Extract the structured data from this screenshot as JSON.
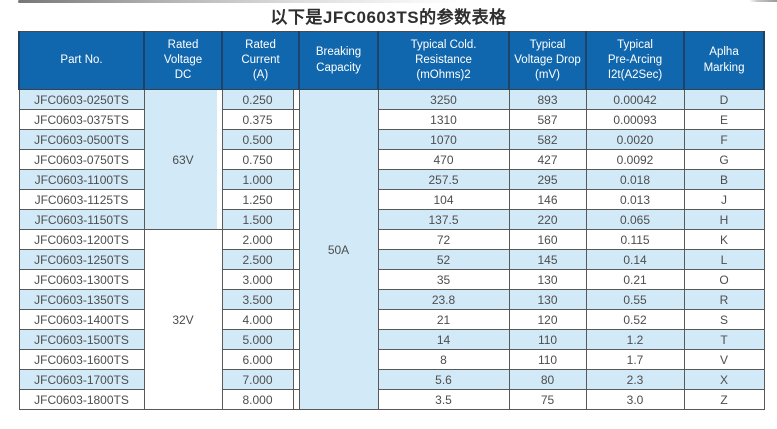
{
  "page": {
    "title": "以下是JFC0603TS的参数表格"
  },
  "table": {
    "headers": [
      "Part No.",
      "Rated\nVoltage\nDC",
      "Rated\nCurrent\n(A)",
      "Breaking\nCapacity",
      "Typical Cold.\nResistance\n(mOhms)2",
      "Typical\nVoltage Drop\n(mV)",
      "Typical\nPre-Arcing\nI2t(A2Sec)",
      "Aplha\nMarking"
    ],
    "voltage_groups": [
      {
        "label": "63V",
        "rows": 7
      },
      {
        "label": "32V",
        "rows": 9
      }
    ],
    "breaking_capacity": "50A",
    "rows": [
      {
        "part": "JFC0603-0250TS",
        "current": "0.250",
        "resistance": "3250",
        "drop": "893",
        "prearcing": "0.00042",
        "marking": "D"
      },
      {
        "part": "JFC0603-0375TS",
        "current": "0.375",
        "resistance": "1310",
        "drop": "587",
        "prearcing": "0.00093",
        "marking": "E"
      },
      {
        "part": "JFC0603-0500TS",
        "current": "0.500",
        "resistance": "1070",
        "drop": "582",
        "prearcing": "0.0020",
        "marking": "F"
      },
      {
        "part": "JFC0603-0750TS",
        "current": "0.750",
        "resistance": "470",
        "drop": "427",
        "prearcing": "0.0092",
        "marking": "G"
      },
      {
        "part": "JFC0603-1100TS",
        "current": "1.000",
        "resistance": "257.5",
        "drop": "295",
        "prearcing": "0.018",
        "marking": "B"
      },
      {
        "part": "JFC0603-1125TS",
        "current": "1.250",
        "resistance": "104",
        "drop": "146",
        "prearcing": "0.013",
        "marking": "J"
      },
      {
        "part": "JFC0603-1150TS",
        "current": "1.500",
        "resistance": "137.5",
        "drop": "220",
        "prearcing": "0.065",
        "marking": "H"
      },
      {
        "part": "JFC0603-1200TS",
        "current": "2.000",
        "resistance": "72",
        "drop": "160",
        "prearcing": "0.115",
        "marking": "K"
      },
      {
        "part": "JFC0603-1250TS",
        "current": "2.500",
        "resistance": "52",
        "drop": "145",
        "prearcing": "0.14",
        "marking": "L"
      },
      {
        "part": "JFC0603-1300TS",
        "current": "3.000",
        "resistance": "35",
        "drop": "130",
        "prearcing": "0.21",
        "marking": "O"
      },
      {
        "part": "JFC0603-1350TS",
        "current": "3.500",
        "resistance": "23.8",
        "drop": "130",
        "prearcing": "0.55",
        "marking": "R"
      },
      {
        "part": "JFC0603-1400TS",
        "current": "4.000",
        "resistance": "21",
        "drop": "120",
        "prearcing": "0.52",
        "marking": "S"
      },
      {
        "part": "JFC0603-1500TS",
        "current": "5.000",
        "resistance": "14",
        "drop": "110",
        "prearcing": "1.2",
        "marking": "T"
      },
      {
        "part": "JFC0603-1600TS",
        "current": "6.000",
        "resistance": "8",
        "drop": "110",
        "prearcing": "1.7",
        "marking": "V"
      },
      {
        "part": "JFC0603-1700TS",
        "current": "7.000",
        "resistance": "5.6",
        "drop": "80",
        "prearcing": "2.3",
        "marking": "X"
      },
      {
        "part": "JFC0603-1800TS",
        "current": "8.000",
        "resistance": "3.5",
        "drop": "75",
        "prearcing": "3.0",
        "marking": "Z"
      }
    ]
  },
  "colors": {
    "header_bg": "#1167ad",
    "header_divider": "#1e4268",
    "header_text": "#ffffff",
    "row_alt": "#d2eaf8",
    "grid_border": "#595959",
    "cell_text": "#4d4d4d",
    "title_text": "#2f2f2f"
  }
}
